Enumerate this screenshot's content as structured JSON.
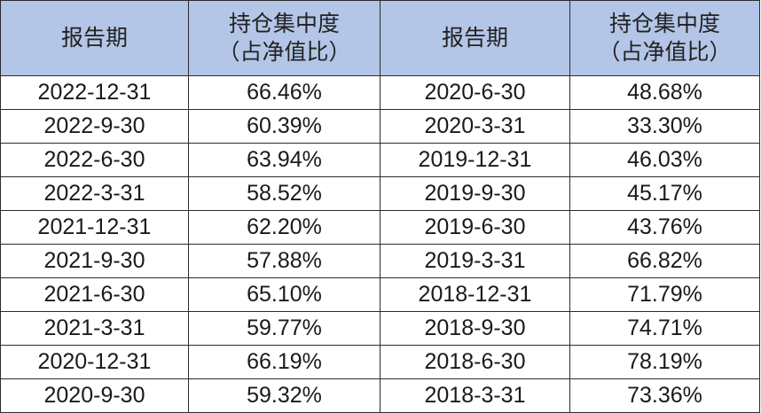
{
  "header": {
    "col1": "报告期",
    "col2_line1": "持仓集中度",
    "col2_line2": "（占净值比）",
    "col3": "报告期",
    "col4_line1": "持仓集中度",
    "col4_line2": "（占净值比）"
  },
  "rows": [
    {
      "date_a": "2022-12-31",
      "value_a": "66.46%",
      "date_b": "2020-6-30",
      "value_b": "48.68%"
    },
    {
      "date_a": "2022-9-30",
      "value_a": "60.39%",
      "date_b": "2020-3-31",
      "value_b": "33.30%"
    },
    {
      "date_a": "2022-6-30",
      "value_a": "63.94%",
      "date_b": "2019-12-31",
      "value_b": "46.03%"
    },
    {
      "date_a": "2022-3-31",
      "value_a": "58.52%",
      "date_b": "2019-9-30",
      "value_b": "45.17%"
    },
    {
      "date_a": "2021-12-31",
      "value_a": "62.20%",
      "date_b": "2019-6-30",
      "value_b": "43.76%"
    },
    {
      "date_a": "2021-9-30",
      "value_a": "57.88%",
      "date_b": "2019-3-31",
      "value_b": "66.82%"
    },
    {
      "date_a": "2021-6-30",
      "value_a": "65.10%",
      "date_b": "2018-12-31",
      "value_b": "71.79%"
    },
    {
      "date_a": "2021-3-31",
      "value_a": "59.77%",
      "date_b": "2018-9-30",
      "value_b": "74.71%"
    },
    {
      "date_a": "2020-12-31",
      "value_a": "66.19%",
      "date_b": "2018-6-30",
      "value_b": "78.19%"
    },
    {
      "date_a": "2020-9-30",
      "value_a": "59.32%",
      "date_b": "2018-3-31",
      "value_b": "73.36%"
    }
  ],
  "colors": {
    "header_bg": "#b3c6e7",
    "border": "#2b2b2b",
    "text": "#1a1a1a"
  }
}
